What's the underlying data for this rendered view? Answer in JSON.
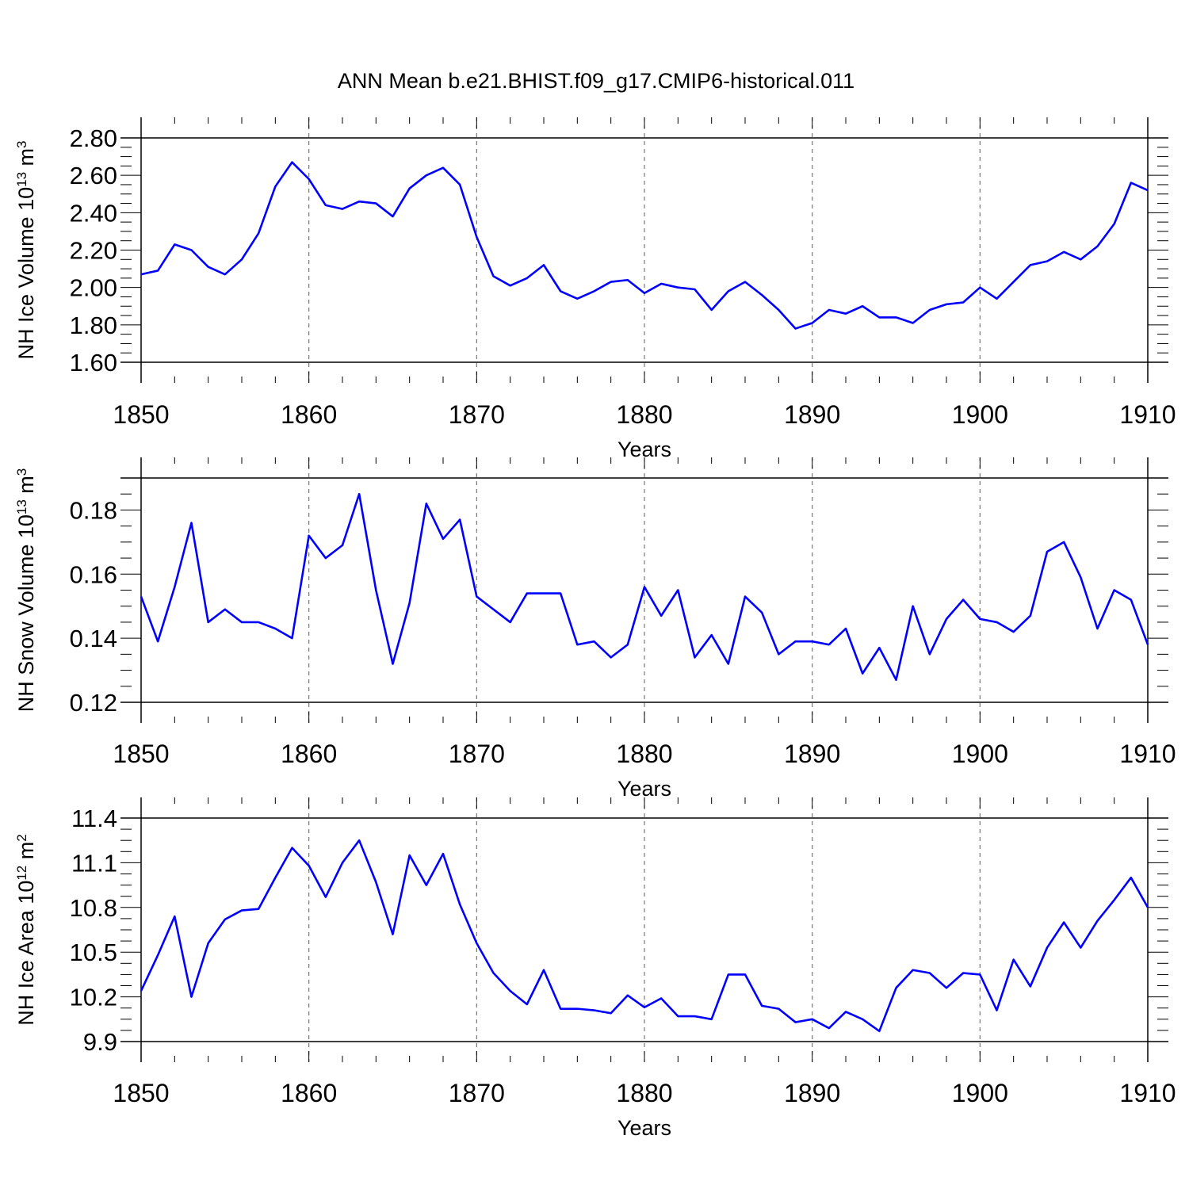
{
  "title": "ANN Mean b.e21.BHIST.f09_g17.CMIP6-historical.011",
  "colors": {
    "line": "#0000ff",
    "axis": "#000000",
    "grid": "#777777",
    "background": "#ffffff"
  },
  "chart_data": [
    {
      "type": "line",
      "xlabel": "Years",
      "ylabel": "NH Ice Volume 10",
      "ylabel_sup": "13",
      "ylabel_unit": " m",
      "ylabel_unit_sup": "3",
      "xlim": [
        1850,
        1910
      ],
      "ylim": [
        1.6,
        2.8
      ],
      "x_ticks": [
        1850,
        1860,
        1870,
        1880,
        1890,
        1900,
        1910
      ],
      "y_ticks": [
        1.6,
        1.8,
        2.0,
        2.2,
        2.4,
        2.6,
        2.8
      ],
      "x_tick_labels": [
        "1850",
        "1860",
        "1870",
        "1880",
        "1890",
        "1900",
        "1910"
      ],
      "y_tick_labels": [
        "1.60",
        "1.80",
        "2.00",
        "2.20",
        "2.40",
        "2.60",
        "2.80"
      ],
      "x_start": 1850,
      "values": [
        2.07,
        2.09,
        2.23,
        2.2,
        2.11,
        2.07,
        2.15,
        2.29,
        2.54,
        2.67,
        2.58,
        2.44,
        2.42,
        2.46,
        2.45,
        2.38,
        2.53,
        2.6,
        2.64,
        2.55,
        2.27,
        2.06,
        2.01,
        2.05,
        2.12,
        1.98,
        1.94,
        1.98,
        2.03,
        2.04,
        1.97,
        2.02,
        2.0,
        1.99,
        1.88,
        1.98,
        2.03,
        1.96,
        1.88,
        1.78,
        1.81,
        1.88,
        1.86,
        1.9,
        1.84,
        1.84,
        1.81,
        1.88,
        1.91,
        1.92,
        2.0,
        1.94,
        2.03,
        2.12,
        2.14,
        2.19,
        2.15,
        2.22,
        2.34,
        2.56,
        2.52
      ]
    },
    {
      "type": "line",
      "xlabel": "Years",
      "ylabel": "NH Snow Volume 10",
      "ylabel_sup": "13",
      "ylabel_unit": " m",
      "ylabel_unit_sup": "3",
      "xlim": [
        1850,
        1910
      ],
      "ylim": [
        0.12,
        0.19
      ],
      "x_ticks": [
        1850,
        1860,
        1870,
        1880,
        1890,
        1900,
        1910
      ],
      "y_ticks": [
        0.12,
        0.14,
        0.16,
        0.18
      ],
      "x_tick_labels": [
        "1850",
        "1860",
        "1870",
        "1880",
        "1890",
        "1900",
        "1910"
      ],
      "y_tick_labels": [
        "0.12",
        "0.14",
        "0.16",
        "0.18"
      ],
      "x_start": 1850,
      "values": [
        0.153,
        0.139,
        0.156,
        0.176,
        0.145,
        0.149,
        0.145,
        0.145,
        0.143,
        0.14,
        0.172,
        0.165,
        0.169,
        0.185,
        0.155,
        0.132,
        0.151,
        0.182,
        0.171,
        0.177,
        0.153,
        0.149,
        0.145,
        0.154,
        0.154,
        0.154,
        0.138,
        0.139,
        0.134,
        0.138,
        0.156,
        0.147,
        0.155,
        0.134,
        0.141,
        0.132,
        0.153,
        0.148,
        0.135,
        0.139,
        0.139,
        0.138,
        0.143,
        0.129,
        0.137,
        0.127,
        0.15,
        0.135,
        0.146,
        0.152,
        0.146,
        0.145,
        0.142,
        0.147,
        0.167,
        0.17,
        0.159,
        0.143,
        0.155,
        0.152,
        0.138
      ]
    },
    {
      "type": "line",
      "xlabel": "Years",
      "ylabel": "NH Ice Area 10",
      "ylabel_sup": "12",
      "ylabel_unit": " m",
      "ylabel_unit_sup": "2",
      "xlim": [
        1850,
        1910
      ],
      "ylim": [
        9.9,
        11.4
      ],
      "x_ticks": [
        1850,
        1860,
        1870,
        1880,
        1890,
        1900,
        1910
      ],
      "y_ticks": [
        9.9,
        10.2,
        10.5,
        10.8,
        11.1,
        11.4
      ],
      "x_tick_labels": [
        "1850",
        "1860",
        "1870",
        "1880",
        "1890",
        "1900",
        "1910"
      ],
      "y_tick_labels": [
        "9.9",
        "10.2",
        "10.5",
        "10.8",
        "11.1",
        "11.4"
      ],
      "x_start": 1850,
      "values": [
        10.24,
        10.48,
        10.74,
        10.2,
        10.56,
        10.72,
        10.78,
        10.79,
        11.0,
        11.2,
        11.08,
        10.87,
        11.1,
        11.25,
        10.97,
        10.62,
        11.15,
        10.95,
        11.16,
        10.82,
        10.56,
        10.36,
        10.24,
        10.15,
        10.38,
        10.12,
        10.12,
        10.11,
        10.09,
        10.21,
        10.13,
        10.19,
        10.07,
        10.07,
        10.05,
        10.35,
        10.35,
        10.14,
        10.12,
        10.03,
        10.05,
        9.99,
        10.1,
        10.05,
        9.97,
        10.26,
        10.38,
        10.36,
        10.26,
        10.36,
        10.35,
        10.11,
        10.45,
        10.27,
        10.53,
        10.7,
        10.53,
        10.71,
        10.85,
        11.0,
        10.8
      ]
    }
  ]
}
